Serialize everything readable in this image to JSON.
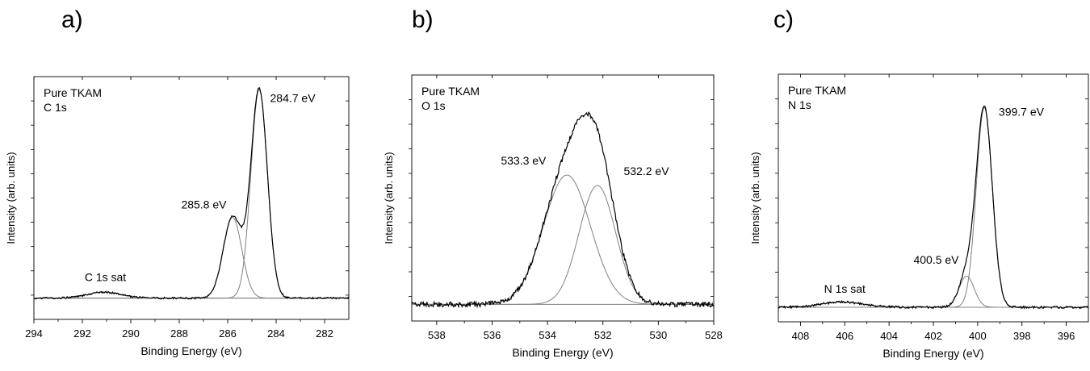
{
  "colors": {
    "envelope": "#000000",
    "component": "#808080",
    "axis": "#000000"
  },
  "panels": [
    {
      "letter": "a)",
      "chart_data": {
        "type": "line",
        "title_lines": [
          "Pure TKAM",
          "C 1s"
        ],
        "xlabel": "Binding Energy (eV)",
        "ylabel": "Intensity (arb. units)",
        "xlim": [
          294,
          281
        ],
        "x_reversed": true,
        "ylim": [
          -0.1,
          1.04
        ],
        "x_ticks": [
          294,
          292,
          290,
          288,
          286,
          284,
          282
        ],
        "y_scale_labels_shown": false,
        "grid": false,
        "legend": "none",
        "baseline": 0,
        "components": [
          {
            "label": "284.7 eV",
            "center": 284.7,
            "height": 0.98,
            "fwhm": 0.8
          },
          {
            "label": "285.8 eV",
            "center": 285.8,
            "height": 0.38,
            "fwhm": 0.9
          },
          {
            "label": "C 1s sat",
            "center": 291.1,
            "height": 0.028,
            "fwhm": 1.6
          }
        ],
        "noise": 0.004,
        "annotations": [
          {
            "text": "284.7 eV",
            "x": 284.25,
            "y": 0.92,
            "anchor": "start"
          },
          {
            "text": "285.8 eV",
            "x": 286.05,
            "y": 0.42,
            "anchor": "end"
          },
          {
            "text": "C 1s sat",
            "x": 291.05,
            "y": 0.08,
            "anchor": "middle"
          }
        ]
      }
    },
    {
      "letter": "b)",
      "chart_data": {
        "type": "line",
        "title_lines": [
          "Pure TKAM",
          "O 1s"
        ],
        "xlabel": "Binding Energy (eV)",
        "ylabel": "Intensity (arb. units)",
        "xlim": [
          538.9,
          528
        ],
        "x_reversed": true,
        "ylim": [
          -0.08,
          1.1
        ],
        "x_ticks": [
          538,
          536,
          534,
          532,
          530,
          528
        ],
        "y_scale_labels_shown": false,
        "grid": false,
        "legend": "none",
        "baseline": 0,
        "components": [
          {
            "label": "533.3 eV",
            "center": 533.3,
            "height": 0.62,
            "fwhm": 2.0
          },
          {
            "label": "532.2 eV",
            "center": 532.2,
            "height": 0.57,
            "fwhm": 1.55
          }
        ],
        "noise": 0.012,
        "annotations": [
          {
            "text": "533.3 eV",
            "x": 534.05,
            "y": 0.67,
            "anchor": "end"
          },
          {
            "text": "532.2 eV",
            "x": 531.25,
            "y": 0.62,
            "anchor": "start"
          }
        ]
      }
    },
    {
      "letter": "c)",
      "chart_data": {
        "type": "line",
        "title_lines": [
          "Pure TKAM",
          "N 1s"
        ],
        "xlabel": "Binding Energy (eV)",
        "ylabel": "Intensity (arb. units)",
        "xlim": [
          409,
          395
        ],
        "x_reversed": true,
        "ylim": [
          -0.07,
          1.12
        ],
        "x_ticks": [
          408,
          406,
          404,
          402,
          400,
          398,
          396
        ],
        "y_scale_labels_shown": false,
        "grid": false,
        "legend": "none",
        "baseline": 0,
        "components": [
          {
            "label": "399.7 eV",
            "center": 399.7,
            "height": 0.96,
            "fwhm": 0.85
          },
          {
            "label": "400.5 eV",
            "center": 400.5,
            "height": 0.15,
            "fwhm": 0.8
          },
          {
            "label": "N 1s sat",
            "center": 406.1,
            "height": 0.025,
            "fwhm": 2.2
          }
        ],
        "noise": 0.005,
        "annotations": [
          {
            "text": "399.7 eV",
            "x": 399.05,
            "y": 0.92,
            "anchor": "start"
          },
          {
            "text": "400.5 eV",
            "x": 400.85,
            "y": 0.21,
            "anchor": "end"
          },
          {
            "text": "N 1s sat",
            "x": 406.0,
            "y": 0.07,
            "anchor": "middle"
          }
        ]
      }
    }
  ]
}
